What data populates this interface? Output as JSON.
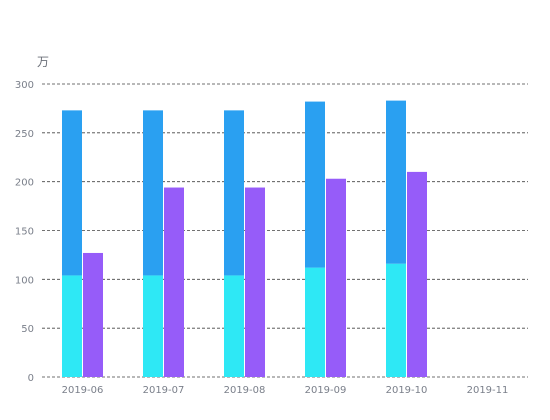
{
  "chart_data": {
    "type": "bar",
    "unit_label": "万",
    "categories": [
      "2019-06",
      "2019-07",
      "2019-08",
      "2019-09",
      "2019-10",
      "2019-11"
    ],
    "stacked_series": [
      {
        "values": [
          104,
          104,
          104,
          112,
          116,
          null
        ],
        "color": "#2ee8f5"
      },
      {
        "values": [
          169,
          169,
          169,
          170,
          167,
          null
        ],
        "color": "#2aa0f1"
      }
    ],
    "side_series": {
      "values": [
        127,
        194,
        194,
        203,
        210,
        null
      ],
      "color": "#965cf9"
    },
    "totals_stacked": [
      273,
      273,
      273,
      282,
      283,
      null
    ],
    "ylim": [
      0,
      300
    ],
    "y_ticks": [
      0,
      50,
      100,
      150,
      200,
      250,
      300
    ],
    "grid": true,
    "grid_style": "dashed",
    "legend": "none"
  }
}
